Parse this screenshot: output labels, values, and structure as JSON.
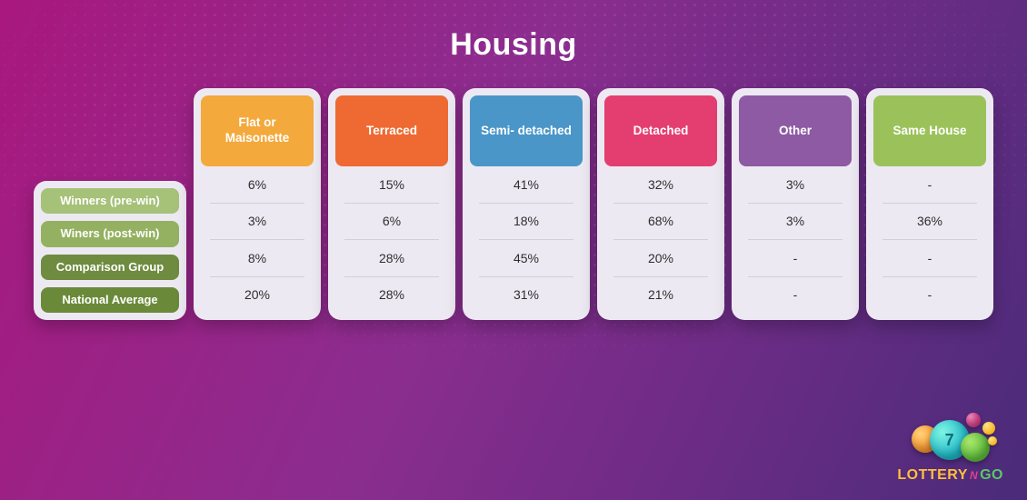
{
  "title": "Housing",
  "row_labels": {
    "items": [
      {
        "label": "Winners\n(pre-win)",
        "bg": "#a6c178"
      },
      {
        "label": "Winers\n(post-win)",
        "bg": "#94b161"
      },
      {
        "label": "Comparison\nGroup",
        "bg": "#6f8b3f"
      },
      {
        "label": "National\nAverage",
        "bg": "#6a8a39"
      }
    ]
  },
  "columns": [
    {
      "label": "Flat or\nMaisonette",
      "bg": "#f3a93c",
      "cells": [
        "6%",
        "3%",
        "8%",
        "20%"
      ]
    },
    {
      "label": "Terraced",
      "bg": "#ee6a32",
      "cells": [
        "15%",
        "6%",
        "28%",
        "28%"
      ]
    },
    {
      "label": "Semi-\ndetached",
      "bg": "#4a96c8",
      "cells": [
        "41%",
        "18%",
        "45%",
        "31%"
      ]
    },
    {
      "label": "Detached",
      "bg": "#e43e71",
      "cells": [
        "32%",
        "68%",
        "20%",
        "21%"
      ]
    },
    {
      "label": "Other",
      "bg": "#8d5aa3",
      "cells": [
        "3%",
        "3%",
        "-",
        "-"
      ]
    },
    {
      "label": "Same\nHouse",
      "bg": "#9bc25a",
      "cells": [
        "-",
        "36%",
        "-",
        "-"
      ]
    }
  ],
  "panel_bg": "#ede9f2",
  "cell_divider": "#d4cddc",
  "title_color": "#ffffff",
  "logo": {
    "main": "LOTTERY",
    "mid": "N",
    "tail": "GO",
    "ball_digit": "7"
  }
}
